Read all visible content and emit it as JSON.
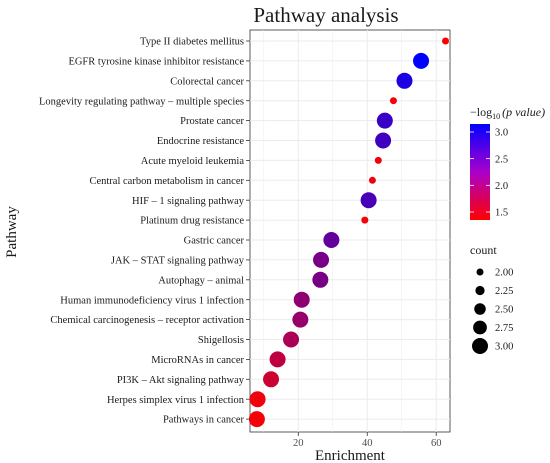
{
  "chart_data": {
    "type": "scatter",
    "title": "Pathway analysis",
    "xlabel": "Enrichment",
    "ylabel": "Pathway",
    "xlim": [
      6,
      64
    ],
    "xticks": [
      20,
      40,
      60
    ],
    "grid": true,
    "categories": [
      "Type II diabetes mellitus",
      "EGFR tyrosine kinase inhibitor resistance",
      "Colorectal cancer",
      "Longevity regulating pathway – multiple species",
      "Prostate cancer",
      "Endocrine resistance",
      "Acute myeloid leukemia",
      "Central carbon metabolism in cancer",
      "HIF – 1 signaling pathway",
      "Platinum drug resistance",
      "Gastric cancer",
      "JAK – STAT signaling pathway",
      "Autophagy – animal",
      "Human immunodeficiency virus 1 infection",
      "Chemical carcinogenesis – receptor activation",
      "Shigellosis",
      "MicroRNAs in cancer",
      "PI3K – Akt signaling pathway",
      "Herpes simplex virus 1 infection",
      "Pathways in cancer"
    ],
    "points": [
      {
        "enrichment": 62.7,
        "count": 2,
        "neglog10p": 1.35
      },
      {
        "enrichment": 55.6,
        "count": 3,
        "neglog10p": 3.15
      },
      {
        "enrichment": 50.8,
        "count": 3,
        "neglog10p": 2.95
      },
      {
        "enrichment": 47.6,
        "count": 2,
        "neglog10p": 1.4
      },
      {
        "enrichment": 45.1,
        "count": 3,
        "neglog10p": 2.75
      },
      {
        "enrichment": 44.6,
        "count": 3,
        "neglog10p": 2.7
      },
      {
        "enrichment": 43.2,
        "count": 2,
        "neglog10p": 1.45
      },
      {
        "enrichment": 41.5,
        "count": 2,
        "neglog10p": 1.45
      },
      {
        "enrichment": 40.4,
        "count": 3,
        "neglog10p": 2.65
      },
      {
        "enrichment": 39.3,
        "count": 2,
        "neglog10p": 1.4
      },
      {
        "enrichment": 29.6,
        "count": 3,
        "neglog10p": 2.45
      },
      {
        "enrichment": 26.6,
        "count": 3,
        "neglog10p": 2.3
      },
      {
        "enrichment": 26.4,
        "count": 3,
        "neglog10p": 2.3
      },
      {
        "enrichment": 21.0,
        "count": 3,
        "neglog10p": 2.15
      },
      {
        "enrichment": 20.6,
        "count": 3,
        "neglog10p": 2.1
      },
      {
        "enrichment": 17.9,
        "count": 3,
        "neglog10p": 1.95
      },
      {
        "enrichment": 14.0,
        "count": 3,
        "neglog10p": 1.8
      },
      {
        "enrichment": 12.1,
        "count": 3,
        "neglog10p": 1.7
      },
      {
        "enrichment": 8.2,
        "count": 3,
        "neglog10p": 1.45
      },
      {
        "enrichment": 8.0,
        "count": 3,
        "neglog10p": 1.4
      }
    ],
    "color_legend": {
      "title_main": "−log",
      "title_sub": "10",
      "title_rest": "(p value)",
      "ticks": [
        3.0,
        2.5,
        2.0,
        1.5
      ],
      "tick_labels": [
        "3.0",
        "2.5",
        "2.0",
        "1.5"
      ],
      "range": [
        1.35,
        3.15
      ],
      "low_color": "#ff0000",
      "high_color": "#0000ff"
    },
    "size_legend": {
      "title": "count",
      "values": [
        2.0,
        2.25,
        2.5,
        2.75,
        3.0
      ],
      "labels": [
        "2.00",
        "2.25",
        "2.50",
        "2.75",
        "3.00"
      ]
    }
  }
}
